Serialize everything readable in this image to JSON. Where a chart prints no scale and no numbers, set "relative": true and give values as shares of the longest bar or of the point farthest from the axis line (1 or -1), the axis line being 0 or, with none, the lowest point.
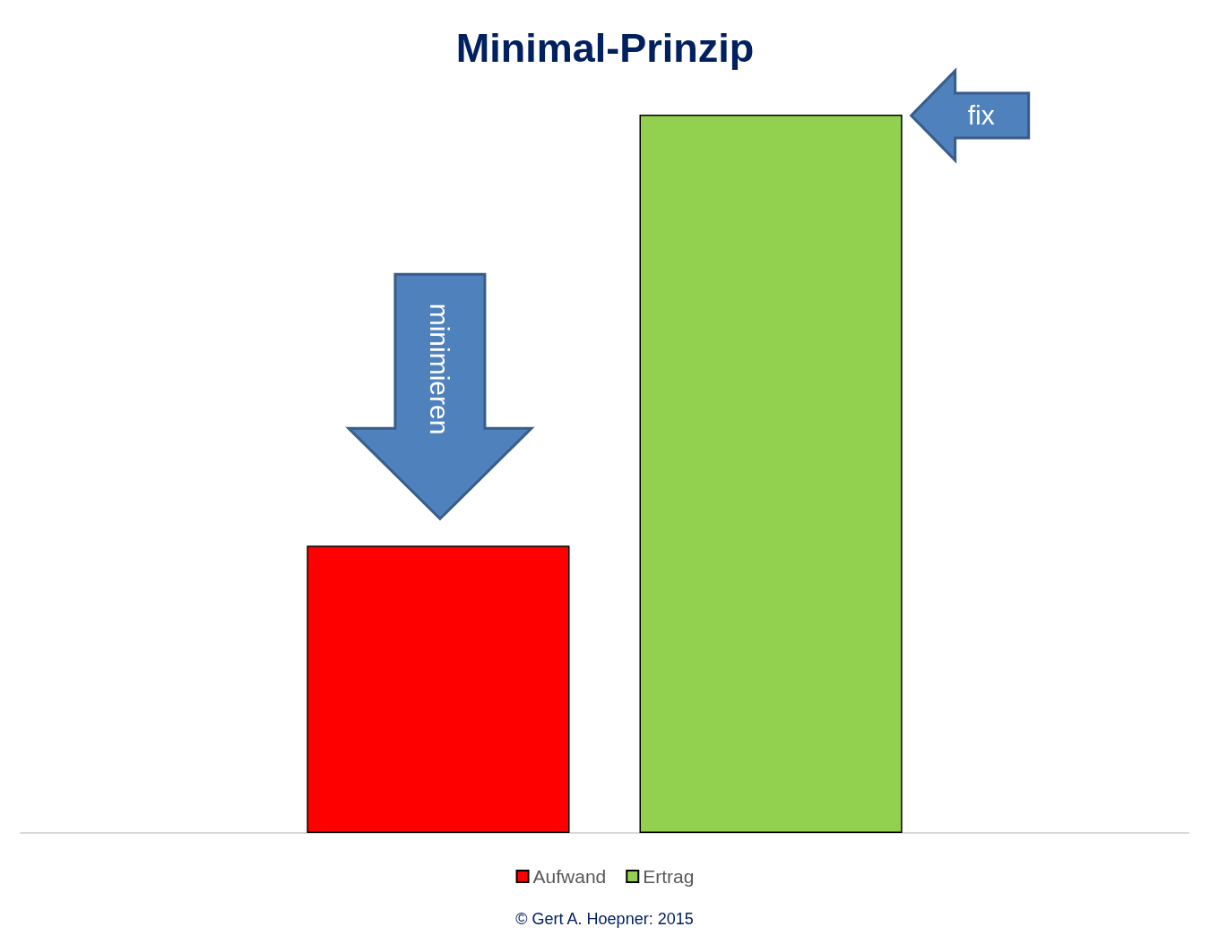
{
  "chart_data": {
    "type": "bar",
    "title": "Minimal-Prinzip",
    "categories": [
      null
    ],
    "series": [
      {
        "name": "Aufwand",
        "color": "#ff0000",
        "values": [
          0.4
        ]
      },
      {
        "name": "Ertrag",
        "color": "#92d050",
        "values": [
          1
        ]
      }
    ],
    "relative": true,
    "legend": "bottom",
    "grid": false,
    "annotations": [
      "minimieren",
      "fix",
      "© Gert A. Hoepner: 2015"
    ]
  }
}
